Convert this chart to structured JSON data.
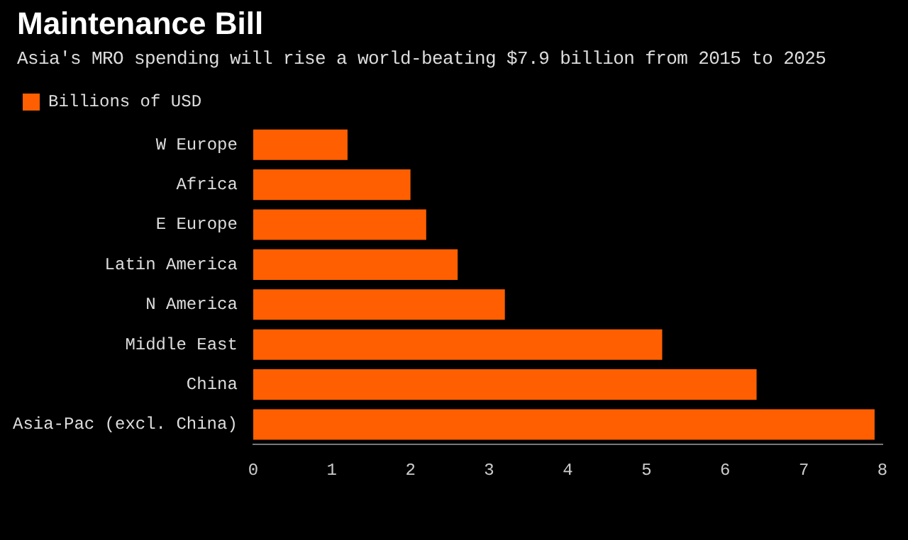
{
  "chart_data": {
    "type": "bar",
    "orientation": "horizontal",
    "title": "Maintenance Bill",
    "subtitle": "Asia's MRO spending will rise a world-beating $7.9 billion from 2015 to 2025",
    "categories": [
      "W Europe",
      "Africa",
      "E Europe",
      "Latin America",
      "N America",
      "Middle East",
      "China",
      "Asia-Pac (excl. China)"
    ],
    "series": [
      {
        "name": "Billions of USD",
        "color": "#ff5f00",
        "values": [
          1.2,
          2.0,
          2.2,
          2.6,
          3.2,
          5.2,
          6.4,
          7.9
        ]
      }
    ],
    "xlim": [
      0,
      8
    ],
    "xticks": [
      0,
      1,
      2,
      3,
      4,
      5,
      6,
      7,
      8
    ],
    "grid": false,
    "legend": "top left"
  }
}
